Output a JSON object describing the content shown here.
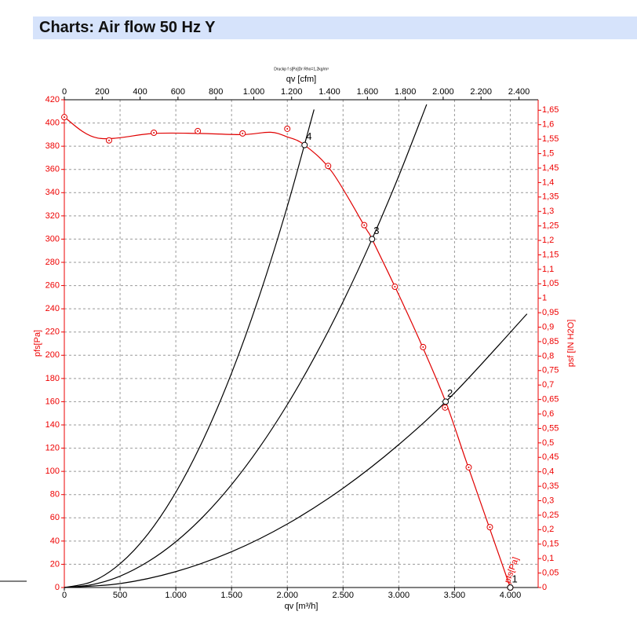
{
  "page_title": "Charts: Air flow 50 Hz Y",
  "chart_data": {
    "type": "line",
    "title": "Druckp f s[Pa]Dr Rho=1,2kg/m³",
    "x_label": "qv [m³/h]",
    "x2_label": "qv [cfm]",
    "y_label": "pfs[Pa]",
    "y2_label": "psf [IN H2O]",
    "xlim": [
      0,
      4250
    ],
    "xticks": [
      0,
      500,
      {
        "value": 1000,
        "label": "1.000"
      },
      {
        "value": 1500,
        "label": "1.500"
      },
      {
        "value": 2000,
        "label": "2.000"
      },
      {
        "value": 2500,
        "label": "2.500"
      },
      {
        "value": 3000,
        "label": "3.000"
      },
      {
        "value": 3500,
        "label": "3.500"
      },
      {
        "value": 4000,
        "label": "4.000"
      }
    ],
    "x2lim": [
      0,
      2501.5
    ],
    "x2ticks": [
      0,
      200,
      400,
      600,
      800,
      {
        "value": 1000,
        "label": "1.000"
      },
      {
        "value": 1200,
        "label": "1.200"
      },
      {
        "value": 1400,
        "label": "1.400"
      },
      {
        "value": 1600,
        "label": "1.600"
      },
      {
        "value": 1800,
        "label": "1.800"
      },
      {
        "value": 2000,
        "label": "2.000"
      },
      {
        "value": 2200,
        "label": "2.200"
      },
      {
        "value": 2400,
        "label": "2.400"
      }
    ],
    "ylim": [
      0,
      420
    ],
    "yticks": [
      0,
      20,
      40,
      60,
      80,
      100,
      120,
      140,
      160,
      180,
      200,
      220,
      240,
      260,
      280,
      300,
      320,
      340,
      360,
      380,
      400,
      420
    ],
    "y2lim": [
      0,
      1.6862
    ],
    "y2ticks": [
      0,
      {
        "value": 0.05,
        "label": "0,05"
      },
      {
        "value": 0.1,
        "label": "0,1"
      },
      {
        "value": 0.15,
        "label": "0,15"
      },
      {
        "value": 0.2,
        "label": "0,2"
      },
      {
        "value": 0.25,
        "label": "0,25"
      },
      {
        "value": 0.3,
        "label": "0,3"
      },
      {
        "value": 0.35,
        "label": "0,35"
      },
      {
        "value": 0.4,
        "label": "0,4"
      },
      {
        "value": 0.45,
        "label": "0,45"
      },
      {
        "value": 0.5,
        "label": "0,5"
      },
      {
        "value": 0.55,
        "label": "0,55"
      },
      {
        "value": 0.6,
        "label": "0,6"
      },
      {
        "value": 0.65,
        "label": "0,65"
      },
      {
        "value": 0.7,
        "label": "0,7"
      },
      {
        "value": 0.75,
        "label": "0,75"
      },
      {
        "value": 0.8,
        "label": "0,8"
      },
      {
        "value": 0.85,
        "label": "0,85"
      },
      {
        "value": 0.9,
        "label": "0,9"
      },
      {
        "value": 0.95,
        "label": "0,95"
      },
      1,
      {
        "value": 1.05,
        "label": "1,05"
      },
      {
        "value": 1.1,
        "label": "1,1"
      },
      {
        "value": 1.15,
        "label": "1,15"
      },
      {
        "value": 1.2,
        "label": "1,2"
      },
      {
        "value": 1.25,
        "label": "1,25"
      },
      {
        "value": 1.3,
        "label": "1,3"
      },
      {
        "value": 1.35,
        "label": "1,35"
      },
      {
        "value": 1.4,
        "label": "1,4"
      },
      {
        "value": 1.45,
        "label": "1,45"
      },
      {
        "value": 1.5,
        "label": "1,5"
      },
      {
        "value": 1.55,
        "label": "1,55"
      },
      {
        "value": 1.6,
        "label": "1,6"
      },
      {
        "value": 1.65,
        "label": "1,65"
      }
    ],
    "grid": true,
    "fan_curve": {
      "color": "#e00000",
      "label": "pfs[Pa]",
      "x": [
        0,
        300,
        800,
        1200,
        1600,
        1850,
        2000,
        2155,
        2400,
        2700,
        2760,
        3000,
        3200,
        3420,
        3600,
        3800,
        4000
      ],
      "values": [
        405,
        387,
        391,
        391,
        390,
        392,
        388,
        381,
        358,
        310,
        300,
        252,
        210,
        160,
        110,
        55,
        0
      ]
    },
    "measured_points": {
      "color": "#e00000",
      "x": [
        0,
        401,
        803,
        1197,
        1599,
        2000,
        2366,
        2690,
        2965,
        3218,
        3415,
        3627,
        3817,
        4000
      ],
      "values": [
        405,
        385,
        391.6,
        393,
        391,
        395,
        363,
        312,
        259,
        207,
        155,
        103.5,
        52,
        0
      ]
    },
    "system_curves": [
      {
        "color": "#000000",
        "x": [
          0,
          250,
          500,
          750,
          1000,
          1250,
          1500,
          1750,
          2000,
          2240
        ],
        "values": [
          0,
          5.1,
          20.5,
          46.1,
          82,
          128.2,
          184.6,
          251.3,
          328.2,
          411.6
        ]
      },
      {
        "color": "#000000",
        "x": [
          0,
          250,
          500,
          750,
          1000,
          1250,
          1500,
          1750,
          2000,
          2250,
          2500,
          2750,
          3000,
          3250
        ],
        "values": [
          0,
          2.5,
          9.8,
          22.2,
          39.4,
          61.5,
          88.6,
          120.6,
          157.5,
          199.4,
          246.1,
          297.8,
          354.4,
          416
        ]
      },
      {
        "color": "#000000",
        "x": [
          0,
          500,
          1000,
          1500,
          2000,
          2500,
          3000,
          3500,
          4150
        ],
        "values": [
          0,
          3.4,
          13.7,
          30.8,
          54.7,
          85.5,
          123.1,
          167.6,
          235.6
        ]
      }
    ],
    "operating_points": [
      {
        "label": "1",
        "x": 4000,
        "value": 0
      },
      {
        "label": "2",
        "x": 3420,
        "value": 160
      },
      {
        "label": "3",
        "x": 2760,
        "value": 300
      },
      {
        "label": "4",
        "x": 2155,
        "value": 381
      }
    ]
  }
}
